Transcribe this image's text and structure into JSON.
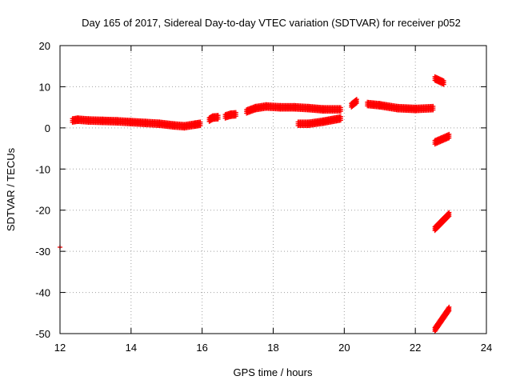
{
  "chart_data": {
    "type": "scatter",
    "title": "Day 165 of 2017, Sidereal Day-to-day VTEC variation (SDTVAR) for receiver p052",
    "xlabel": "GPS time / hours",
    "ylabel": "SDTVAR / TECUs",
    "xlim": [
      12,
      24
    ],
    "ylim": [
      -50,
      20
    ],
    "xticks": [
      "12",
      "14",
      "16",
      "18",
      "20",
      "22",
      "24"
    ],
    "yticks": [
      "-50",
      "-40",
      "-30",
      "-20",
      "-10",
      "0",
      "10",
      "20"
    ],
    "grid": true,
    "marker": "+",
    "series_color": "#ff0000",
    "segments": [
      {
        "x": [
          12.0
        ],
        "y": [
          -29.0
        ]
      },
      {
        "x": [
          12.35,
          12.5,
          12.8,
          13.2,
          13.6,
          14.0,
          14.4,
          14.8,
          15.2,
          15.5,
          15.8,
          15.95
        ],
        "y": [
          1.8,
          2.0,
          1.8,
          1.7,
          1.6,
          1.4,
          1.2,
          1.0,
          0.6,
          0.4,
          0.8,
          1.0
        ]
      },
      {
        "x": [
          16.2,
          16.3,
          16.45
        ],
        "y": [
          2.0,
          2.5,
          2.6
        ]
      },
      {
        "x": [
          16.65,
          16.8,
          16.95
        ],
        "y": [
          2.8,
          3.2,
          3.3
        ]
      },
      {
        "x": [
          17.25,
          17.5,
          17.8,
          18.2,
          18.6,
          19.0,
          19.4,
          19.9
        ],
        "y": [
          4.0,
          4.8,
          5.2,
          5.0,
          5.0,
          4.8,
          4.5,
          4.5
        ]
      },
      {
        "x": [
          18.7,
          19.0,
          19.4,
          19.9
        ],
        "y": [
          1.0,
          1.0,
          1.5,
          2.3
        ]
      },
      {
        "x": [
          20.2,
          20.35
        ],
        "y": [
          5.5,
          6.5
        ]
      },
      {
        "x": [
          20.65,
          21.0,
          21.5,
          22.0,
          22.5
        ],
        "y": [
          5.8,
          5.5,
          4.8,
          4.6,
          4.8
        ]
      },
      {
        "x": [
          22.55,
          22.8
        ],
        "y": [
          12.0,
          11.0
        ]
      },
      {
        "x": [
          22.55,
          22.95
        ],
        "y": [
          -3.5,
          -2.0
        ]
      },
      {
        "x": [
          22.55,
          22.95
        ],
        "y": [
          -24.5,
          -21.0
        ]
      },
      {
        "x": [
          22.55,
          22.95
        ],
        "y": [
          -49.0,
          -44.0
        ]
      }
    ]
  }
}
